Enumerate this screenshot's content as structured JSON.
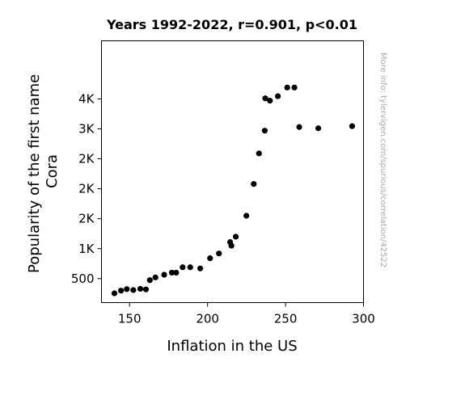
{
  "chart_data": {
    "type": "scatter",
    "title": "Years 1992-2022, r=0.901, p<0.01",
    "xlabel": "Inflation in the US",
    "ylabel_lines": [
      "Popularity of the first name",
      "Cora"
    ],
    "side_note": "More info: tylervigen.com/spurious/correlation/42522",
    "xlim": [
      132,
      300
    ],
    "ylim": [
      100,
      4470
    ],
    "xticks": [
      {
        "value": 150,
        "label": "150"
      },
      {
        "value": 200,
        "label": "200"
      },
      {
        "value": 250,
        "label": "250"
      },
      {
        "value": 300,
        "label": "300"
      }
    ],
    "yticks": [
      {
        "value": 500,
        "label": "500"
      },
      {
        "value": 1000,
        "label": "1K"
      },
      {
        "value": 1500,
        "label": "2K"
      },
      {
        "value": 2000,
        "label": "2K"
      },
      {
        "value": 2500,
        "label": "2K"
      },
      {
        "value": 3000,
        "label": "3K"
      },
      {
        "value": 3500,
        "label": "4K"
      }
    ],
    "marker_color": "#000000",
    "points": [
      {
        "x": 140.3,
        "y": 255
      },
      {
        "x": 144.5,
        "y": 300
      },
      {
        "x": 148.2,
        "y": 325
      },
      {
        "x": 152.4,
        "y": 310
      },
      {
        "x": 156.9,
        "y": 330
      },
      {
        "x": 160.5,
        "y": 320
      },
      {
        "x": 163.0,
        "y": 475
      },
      {
        "x": 166.6,
        "y": 520
      },
      {
        "x": 172.2,
        "y": 565
      },
      {
        "x": 177.1,
        "y": 600
      },
      {
        "x": 179.9,
        "y": 600
      },
      {
        "x": 184.0,
        "y": 690
      },
      {
        "x": 188.9,
        "y": 690
      },
      {
        "x": 195.3,
        "y": 670
      },
      {
        "x": 201.6,
        "y": 840
      },
      {
        "x": 207.3,
        "y": 920
      },
      {
        "x": 214.5,
        "y": 1110
      },
      {
        "x": 215.3,
        "y": 1050
      },
      {
        "x": 218.1,
        "y": 1200
      },
      {
        "x": 224.9,
        "y": 1550
      },
      {
        "x": 229.6,
        "y": 2080
      },
      {
        "x": 233.0,
        "y": 2590
      },
      {
        "x": 236.7,
        "y": 2970
      },
      {
        "x": 237.0,
        "y": 3510
      },
      {
        "x": 240.0,
        "y": 3470
      },
      {
        "x": 245.1,
        "y": 3545
      },
      {
        "x": 251.1,
        "y": 3690
      },
      {
        "x": 255.7,
        "y": 3690
      },
      {
        "x": 258.8,
        "y": 3030
      },
      {
        "x": 271.0,
        "y": 3010
      },
      {
        "x": 292.7,
        "y": 3045
      }
    ]
  }
}
